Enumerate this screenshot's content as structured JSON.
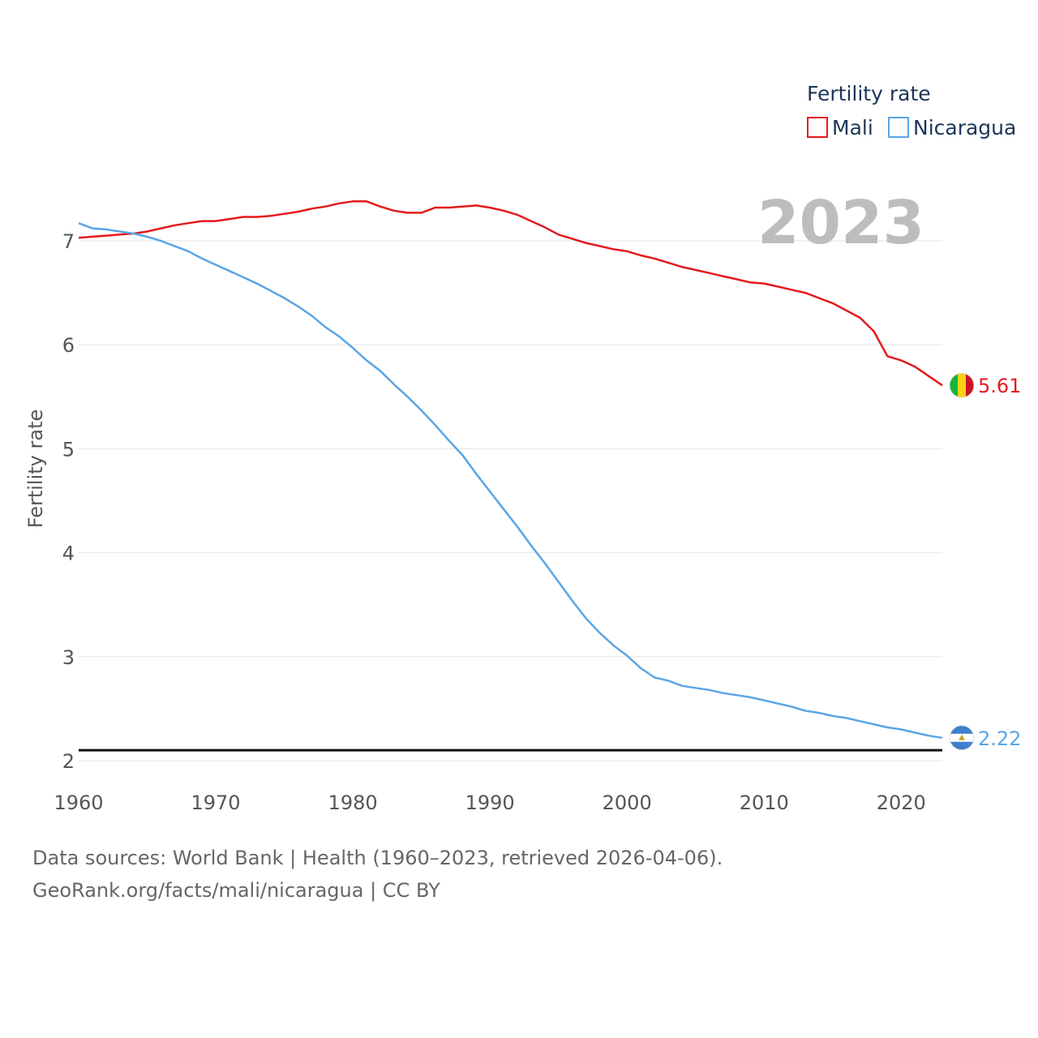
{
  "chart_data": {
    "type": "line",
    "title": "Fertility rate",
    "ylabel": "Fertility rate",
    "xlabel": "",
    "year_display": "2023",
    "xlim": [
      1960,
      2023
    ],
    "ylim": [
      2,
      7.6
    ],
    "xticks": [
      1960,
      1970,
      1980,
      1990,
      2000,
      2010,
      2020
    ],
    "yticks": [
      2,
      3,
      4,
      5,
      6,
      7
    ],
    "reference_line": 2.1,
    "legend_position": "top-right",
    "series": [
      {
        "name": "Mali",
        "color": "#e41a1c",
        "end_label": "5.61",
        "flag_colors": [
          "#14b53a",
          "#fcd116",
          "#ce1126"
        ],
        "x": [
          1960,
          1961,
          1962,
          1963,
          1964,
          1965,
          1966,
          1967,
          1968,
          1969,
          1970,
          1971,
          1972,
          1973,
          1974,
          1975,
          1976,
          1977,
          1978,
          1979,
          1980,
          1981,
          1982,
          1983,
          1984,
          1985,
          1986,
          1987,
          1988,
          1989,
          1990,
          1991,
          1992,
          1993,
          1994,
          1995,
          1996,
          1997,
          1998,
          1999,
          2000,
          2001,
          2002,
          2003,
          2004,
          2005,
          2006,
          2007,
          2008,
          2009,
          2010,
          2011,
          2012,
          2013,
          2014,
          2015,
          2016,
          2017,
          2018,
          2019,
          2020,
          2021,
          2022,
          2023
        ],
        "values": [
          7.03,
          7.04,
          7.05,
          7.06,
          7.07,
          7.09,
          7.12,
          7.15,
          7.17,
          7.19,
          7.19,
          7.21,
          7.23,
          7.23,
          7.24,
          7.26,
          7.28,
          7.31,
          7.33,
          7.36,
          7.38,
          7.38,
          7.33,
          7.29,
          7.27,
          7.27,
          7.32,
          7.32,
          7.33,
          7.34,
          7.32,
          7.29,
          7.25,
          7.19,
          7.13,
          7.06,
          7.02,
          6.98,
          6.95,
          6.92,
          6.9,
          6.86,
          6.83,
          6.79,
          6.75,
          6.72,
          6.69,
          6.66,
          6.63,
          6.6,
          6.59,
          6.56,
          6.53,
          6.5,
          6.45,
          6.4,
          6.33,
          6.26,
          6.13,
          5.89,
          5.85,
          5.79,
          5.7,
          5.61
        ]
      },
      {
        "name": "Nicaragua",
        "color": "#5aa5e6",
        "end_label": "2.22",
        "flag_colors": [
          "#3e7fcf",
          "#ffffff",
          "#3e7fcf"
        ],
        "x": [
          1960,
          1961,
          1962,
          1963,
          1964,
          1965,
          1966,
          1967,
          1968,
          1969,
          1970,
          1971,
          1972,
          1973,
          1974,
          1975,
          1976,
          1977,
          1978,
          1979,
          1980,
          1981,
          1982,
          1983,
          1984,
          1985,
          1986,
          1987,
          1988,
          1989,
          1990,
          1991,
          1992,
          1993,
          1994,
          1995,
          1996,
          1997,
          1998,
          1999,
          2000,
          2001,
          2002,
          2003,
          2004,
          2005,
          2006,
          2007,
          2008,
          2009,
          2010,
          2011,
          2012,
          2013,
          2014,
          2015,
          2016,
          2017,
          2018,
          2019,
          2020,
          2021,
          2022,
          2023
        ],
        "values": [
          7.17,
          7.12,
          7.11,
          7.09,
          7.07,
          7.04,
          7.0,
          6.95,
          6.9,
          6.83,
          6.77,
          6.71,
          6.65,
          6.59,
          6.52,
          6.45,
          6.37,
          6.28,
          6.17,
          6.08,
          5.97,
          5.85,
          5.75,
          5.62,
          5.5,
          5.37,
          5.23,
          5.08,
          4.94,
          4.76,
          4.59,
          4.42,
          4.25,
          4.07,
          3.9,
          3.72,
          3.54,
          3.37,
          3.23,
          3.11,
          3.01,
          2.89,
          2.8,
          2.77,
          2.72,
          2.7,
          2.68,
          2.65,
          2.63,
          2.61,
          2.58,
          2.55,
          2.52,
          2.48,
          2.46,
          2.43,
          2.41,
          2.38,
          2.35,
          2.32,
          2.3,
          2.27,
          2.24,
          2.22
        ]
      }
    ]
  },
  "footer": {
    "line1": "Data sources: World Bank | Health (1960–2023, retrieved 2026-04-06).",
    "line2": "GeoRank.org/facts/mali/nicaragua | CC BY"
  }
}
